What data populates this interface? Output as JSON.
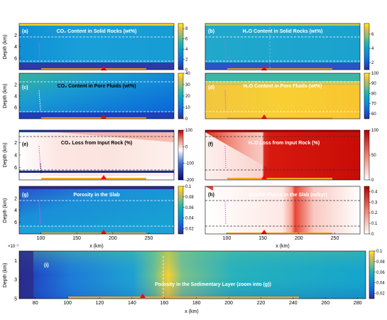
{
  "figure": {
    "x_axis_label": "x (km)",
    "y_axis_label": "Depth (km)",
    "bottom_y_exponent": "×10⁻¹"
  },
  "chart_data": [
    {
      "type": "heatmap",
      "panel": "a",
      "letter": "(a)",
      "title": "CO₂ Content in Solid Rocks (wt%)",
      "x_ticks": [],
      "y_ticks": [
        2,
        4,
        6
      ],
      "ylim": [
        0,
        8
      ],
      "colormap": "parula",
      "clim": [
        0,
        9
      ],
      "colorbar_ticks": [
        0,
        2,
        4,
        6,
        8
      ],
      "colorbar_tick_labels": [
        "0",
        "2",
        "4",
        "6",
        "8"
      ]
    },
    {
      "type": "heatmap",
      "panel": "b",
      "letter": "(b)",
      "title": "H₂O Content in Solid Rocks (wt%)",
      "x_ticks": [],
      "y_ticks": [],
      "ylim": [
        0,
        8
      ],
      "colormap": "parula",
      "clim": [
        1,
        7.5
      ],
      "colorbar_ticks": [
        2,
        4,
        6
      ],
      "colorbar_tick_labels": [
        "2",
        "4",
        "6"
      ]
    },
    {
      "type": "heatmap",
      "panel": "c",
      "letter": "(c)",
      "title": "CO₂ Content in Pore Fluids (wt%)",
      "x_ticks": [],
      "y_ticks": [
        2,
        4,
        6
      ],
      "ylim": [
        0,
        8
      ],
      "colormap": "parula",
      "clim": [
        0,
        40
      ],
      "colorbar_ticks": [
        0,
        10,
        20,
        30,
        40
      ],
      "colorbar_tick_labels": [
        "0",
        "10",
        "20",
        "30",
        "40"
      ]
    },
    {
      "type": "heatmap",
      "panel": "d",
      "letter": "(d)",
      "title": "H₂O Content in Pore Fluids (wt%)",
      "x_ticks": [],
      "y_ticks": [],
      "ylim": [
        0,
        8
      ],
      "colormap": "parula",
      "clim": [
        55,
        100
      ],
      "colorbar_ticks": [
        60,
        70,
        80,
        90,
        100
      ],
      "colorbar_tick_labels": [
        "60",
        "70",
        "80",
        "90",
        "100"
      ]
    },
    {
      "type": "heatmap",
      "panel": "e",
      "letter": "(e)",
      "title": "CO₂ Loss from Input Rock (%)",
      "x_ticks": [],
      "y_ticks": [
        2,
        4,
        6
      ],
      "ylim": [
        0,
        8
      ],
      "colormap": "diverging",
      "clim": [
        -200,
        100
      ],
      "colorbar_ticks": [
        100,
        0,
        -100,
        -200
      ],
      "colorbar_tick_labels": [
        "100",
        "0",
        "-100",
        "-200"
      ]
    },
    {
      "type": "heatmap",
      "panel": "f",
      "letter": "(f)",
      "title": "H₂O Loss from Input Rock (%)",
      "x_ticks": [],
      "y_ticks": [],
      "ylim": [
        0,
        8
      ],
      "colormap": "reds",
      "clim": [
        0,
        100
      ],
      "colorbar_ticks": [
        0,
        50,
        100
      ],
      "colorbar_tick_labels": [
        "0",
        "50",
        "100"
      ]
    },
    {
      "type": "heatmap",
      "panel": "g",
      "letter": "(g)",
      "title": "Porosity in the Slab",
      "x_ticks": [
        100,
        150,
        200,
        250
      ],
      "y_ticks": [
        2,
        4,
        6
      ],
      "ylim": [
        0,
        8
      ],
      "colormap": "parula",
      "clim": [
        0.01,
        0.1
      ],
      "colorbar_ticks": [
        0.02,
        0.04,
        0.06,
        0.08,
        0.1
      ],
      "colorbar_tick_labels": [
        "0.02",
        "0.04",
        "0.06",
        "0.08",
        "0.1"
      ]
    },
    {
      "type": "heatmap",
      "panel": "h",
      "letter": "(h)",
      "title": "Volatile Fluxes in the Slab (m/kyr)",
      "x_ticks": [
        100,
        150,
        200,
        250
      ],
      "y_ticks": [],
      "ylim": [
        0,
        8
      ],
      "colormap": "reds",
      "clim": [
        0,
        0.45
      ],
      "colorbar_ticks": [
        0,
        0.1,
        0.2,
        0.3,
        0.4
      ],
      "colorbar_tick_labels": [
        "0",
        "0.1",
        "0.2",
        "0.3",
        "0.4"
      ]
    },
    {
      "type": "heatmap",
      "panel": "i",
      "letter": "(i)",
      "title": "Porosity in the Sedimentary Layer (zoom into (g))",
      "x_ticks": [
        80,
        100,
        120,
        140,
        160,
        180,
        200,
        220,
        240,
        260,
        280
      ],
      "xlim": [
        70,
        285
      ],
      "y_ticks": [
        1,
        3,
        5
      ],
      "ylim": [
        0,
        5
      ],
      "colormap": "parula",
      "clim": [
        0.01,
        0.1
      ],
      "colorbar_ticks": [
        0.02,
        0.04,
        0.06,
        0.08,
        0.1
      ],
      "colorbar_tick_labels": [
        "0.02",
        "0.04",
        "0.06",
        "0.08",
        "0.1"
      ]
    }
  ]
}
